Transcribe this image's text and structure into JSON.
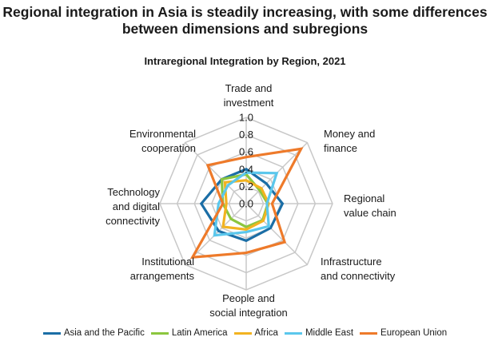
{
  "headline": {
    "line1": "Regional integration in Asia is steadily increasing, with  some differences",
    "line2": "between dimensions and subregions"
  },
  "chart_data": {
    "type": "radar",
    "title": "Intraregional Integration by Region, 2021",
    "rlim": [
      0,
      1.0
    ],
    "ticks": [
      "0.0",
      "0.2",
      "0.4",
      "0.6",
      "0.8",
      "1.0"
    ],
    "grid": true,
    "legend_position": "bottom",
    "categories": [
      [
        "Trade and",
        "investment"
      ],
      [
        "Money and",
        "finance"
      ],
      [
        "Regional",
        "value chain"
      ],
      [
        "Infrastructure",
        "and connectivity"
      ],
      [
        "People and",
        "social integration"
      ],
      [
        "Institutional",
        "arrangements"
      ],
      [
        "Technology",
        "and digital",
        "connectivity"
      ],
      [
        "Environmental",
        "cooperation"
      ]
    ],
    "series": [
      {
        "name": "Asia and the Pacific",
        "color": "#1b6ea6",
        "values": [
          0.4,
          0.33,
          0.42,
          0.4,
          0.43,
          0.45,
          0.52,
          0.4
        ]
      },
      {
        "name": "Latin America",
        "color": "#8cc63f",
        "values": [
          0.34,
          0.22,
          0.25,
          0.27,
          0.27,
          0.25,
          0.27,
          0.4
        ]
      },
      {
        "name": "Africa",
        "color": "#f2b321",
        "values": [
          0.27,
          0.25,
          0.26,
          0.28,
          0.3,
          0.38,
          0.23,
          0.35
        ]
      },
      {
        "name": "Middle East",
        "color": "#5bc7ec",
        "values": [
          0.36,
          0.5,
          0.24,
          0.37,
          0.33,
          0.52,
          0.32,
          0.3
        ]
      },
      {
        "name": "European Union",
        "color": "#ee7a2a",
        "values": [
          0.54,
          0.9,
          0.3,
          0.63,
          0.57,
          0.88,
          0.27,
          0.63
        ]
      }
    ]
  }
}
